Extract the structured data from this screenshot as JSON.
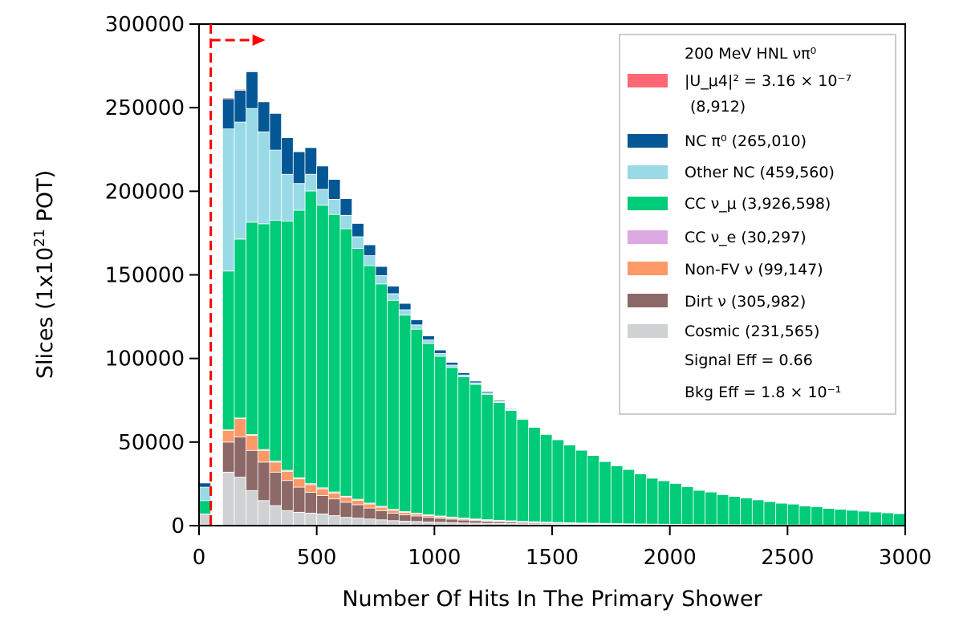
{
  "chart_data": {
    "type": "bar",
    "stacked": true,
    "title": "",
    "xlabel": "Number Of Hits In The Primary Shower",
    "ylabel_prefix": "Slices (1x10",
    "ylabel_exp": "21",
    "ylabel_suffix": " POT)",
    "xlim": [
      0,
      3000
    ],
    "ylim": [
      0,
      300000
    ],
    "bin_width": 50,
    "x_ticks": [
      "0",
      "500",
      "1000",
      "1500",
      "2000",
      "2500",
      "3000"
    ],
    "y_ticks": [
      "0",
      "50000",
      "100000",
      "150000",
      "200000",
      "250000",
      "300000"
    ],
    "cut_value": 50,
    "legend_position": "top-right",
    "bin_starts": [
      0,
      50,
      100,
      150,
      200,
      250,
      300,
      350,
      400,
      450,
      500,
      550,
      600,
      650,
      700,
      750,
      800,
      850,
      900,
      950,
      1000,
      1050,
      1100,
      1150,
      1200,
      1250,
      1300,
      1350,
      1400,
      1450,
      1500,
      1550,
      1600,
      1650,
      1700,
      1750,
      1800,
      1850,
      1900,
      1950,
      2000,
      2050,
      2100,
      2150,
      2200,
      2250,
      2300,
      2350,
      2400,
      2450,
      2500,
      2550,
      2600,
      2650,
      2700,
      2750,
      2800,
      2850,
      2900,
      2950
    ],
    "series": [
      {
        "name": "Cosmic",
        "color": "#d0d1d3",
        "values": [
          7000,
          0,
          32000,
          29000,
          21000,
          15000,
          12000,
          9000,
          8000,
          7500,
          7000,
          6000,
          5000,
          4500,
          4000,
          3500,
          3000,
          2700,
          2500,
          2200,
          2000,
          1800,
          1600,
          1500,
          1400,
          1300,
          1200,
          1100,
          1000,
          950,
          900,
          850,
          800,
          750,
          700,
          650,
          600,
          550,
          500,
          480,
          460,
          440,
          420,
          400,
          380,
          360,
          340,
          320,
          300,
          280,
          260,
          240,
          220,
          200,
          190,
          180,
          170,
          160,
          150,
          140
        ]
      },
      {
        "name": "Dirt",
        "color": "#8c6867",
        "values": [
          0,
          0,
          18000,
          24000,
          24000,
          23000,
          20000,
          18000,
          15000,
          12500,
          11000,
          10000,
          9000,
          8000,
          6500,
          5500,
          4500,
          3800,
          3300,
          2800,
          2400,
          2100,
          1800,
          1500,
          1300,
          1100,
          950,
          800,
          700,
          600,
          500,
          450,
          400,
          350,
          300,
          260,
          220,
          200,
          180,
          160,
          140,
          120,
          110,
          100,
          90,
          80,
          70,
          60,
          55,
          50,
          45,
          40,
          35,
          30,
          28,
          26,
          24,
          22,
          20,
          18
        ]
      },
      {
        "name": "Non-FV",
        "color": "#fc9966",
        "values": [
          0,
          0,
          7000,
          11000,
          9000,
          7000,
          6000,
          5500,
          5000,
          4500,
          4000,
          3500,
          3000,
          2700,
          2400,
          2000,
          1700,
          1400,
          1200,
          1000,
          900,
          800,
          700,
          600,
          500,
          450,
          400,
          350,
          300,
          260,
          230,
          200,
          180,
          160,
          140,
          120,
          100,
          90,
          80,
          70,
          60,
          55,
          50,
          45,
          40,
          35,
          30,
          28,
          26,
          24,
          22,
          20,
          18,
          16,
          15,
          14,
          13,
          12,
          11,
          10
        ]
      },
      {
        "name": "CC nu_e",
        "color": "#dda9e3",
        "values": [
          0,
          0,
          300,
          400,
          500,
          550,
          600,
          620,
          640,
          660,
          650,
          640,
          620,
          600,
          580,
          560,
          540,
          520,
          500,
          480,
          460,
          440,
          420,
          400,
          380,
          360,
          340,
          320,
          300,
          280,
          260,
          240,
          220,
          200,
          190,
          180,
          170,
          160,
          150,
          140,
          130,
          120,
          110,
          100,
          95,
          90,
          85,
          80,
          75,
          70,
          65,
          60,
          55,
          50,
          45,
          40,
          35,
          30,
          25,
          20
        ]
      },
      {
        "name": "CC nu_mu",
        "color": "#00cb78",
        "values": [
          8000,
          0,
          95000,
          107000,
          127000,
          135000,
          144000,
          149000,
          160000,
          175000,
          169000,
          166000,
          160000,
          150000,
          142000,
          133000,
          125000,
          117500,
          110000,
          102500,
          95500,
          89500,
          84500,
          80500,
          75000,
          70500,
          66000,
          61000,
          56500,
          52500,
          49500,
          46500,
          43500,
          40500,
          37000,
          34500,
          32500,
          30000,
          27500,
          26000,
          24500,
          22500,
          20500,
          19500,
          18000,
          17000,
          16000,
          15000,
          14000,
          13000,
          12500,
          11500,
          11000,
          10000,
          9500,
          9000,
          8500,
          8000,
          7500,
          7000
        ]
      },
      {
        "name": "Other NC",
        "color": "#99dae6",
        "values": [
          8000,
          0,
          85000,
          70000,
          68000,
          55000,
          42000,
          28000,
          16000,
          10000,
          9500,
          9000,
          8000,
          7000,
          6000,
          5000,
          4000,
          3200,
          2600,
          2100,
          1700,
          1400,
          1100,
          900,
          700,
          600,
          500,
          400,
          350,
          300,
          260,
          220,
          190,
          160,
          140,
          120,
          100,
          90,
          80,
          70,
          60,
          50,
          45,
          40,
          35,
          30,
          28,
          26,
          24,
          22,
          20,
          18,
          16,
          14,
          12,
          10,
          9,
          8,
          7,
          6
        ]
      },
      {
        "name": "NC pi0",
        "color": "#035795",
        "values": [
          2500,
          0,
          18000,
          19000,
          22000,
          18000,
          22000,
          22000,
          19000,
          16000,
          14000,
          12000,
          10000,
          8000,
          6500,
          5500,
          4500,
          3800,
          3000,
          2500,
          2100,
          1700,
          1400,
          1100,
          900,
          700,
          550,
          450,
          370,
          300,
          250,
          200,
          170,
          140,
          120,
          100,
          85,
          70,
          60,
          50,
          45,
          40,
          35,
          30,
          25,
          22,
          20,
          18,
          16,
          14,
          12,
          10,
          9,
          8,
          7,
          6,
          5,
          4,
          3,
          2
        ]
      },
      {
        "name": "Signal HNL",
        "color": "#fd6776",
        "values": [
          0,
          0,
          700,
          600,
          500,
          400,
          350,
          300,
          250,
          200,
          180,
          150,
          130,
          110,
          90,
          80,
          70,
          60,
          50,
          45,
          40,
          35,
          30,
          25,
          20,
          18,
          16,
          14,
          12,
          10,
          9,
          8,
          7,
          6,
          5,
          4,
          4,
          3,
          3,
          2,
          2,
          2,
          1,
          1,
          1,
          1,
          1,
          1,
          0,
          0,
          0,
          0,
          0,
          0,
          0,
          0,
          0,
          0,
          0,
          0
        ]
      }
    ]
  },
  "legend": {
    "signal_line1": "200 MeV HNL νπ⁰",
    "signal_line2": "|U_μ4|² = 3.16 × 10⁻⁷",
    "signal_line3": "(8,912)",
    "nc_pi0": "NC π⁰ (265,010)",
    "other_nc": "Other NC (459,560)",
    "cc_numu": "CC ν_μ (3,926,598)",
    "cc_nue": "CC ν_e (30,297)",
    "non_fv": "Non-FV ν (99,147)",
    "dirt": "Dirt ν (305,982)",
    "cosmic": "Cosmic (231,565)",
    "signal_eff": "Signal Eff = 0.66",
    "bkg_eff": "Bkg Eff = 1.8 × 10⁻¹"
  }
}
